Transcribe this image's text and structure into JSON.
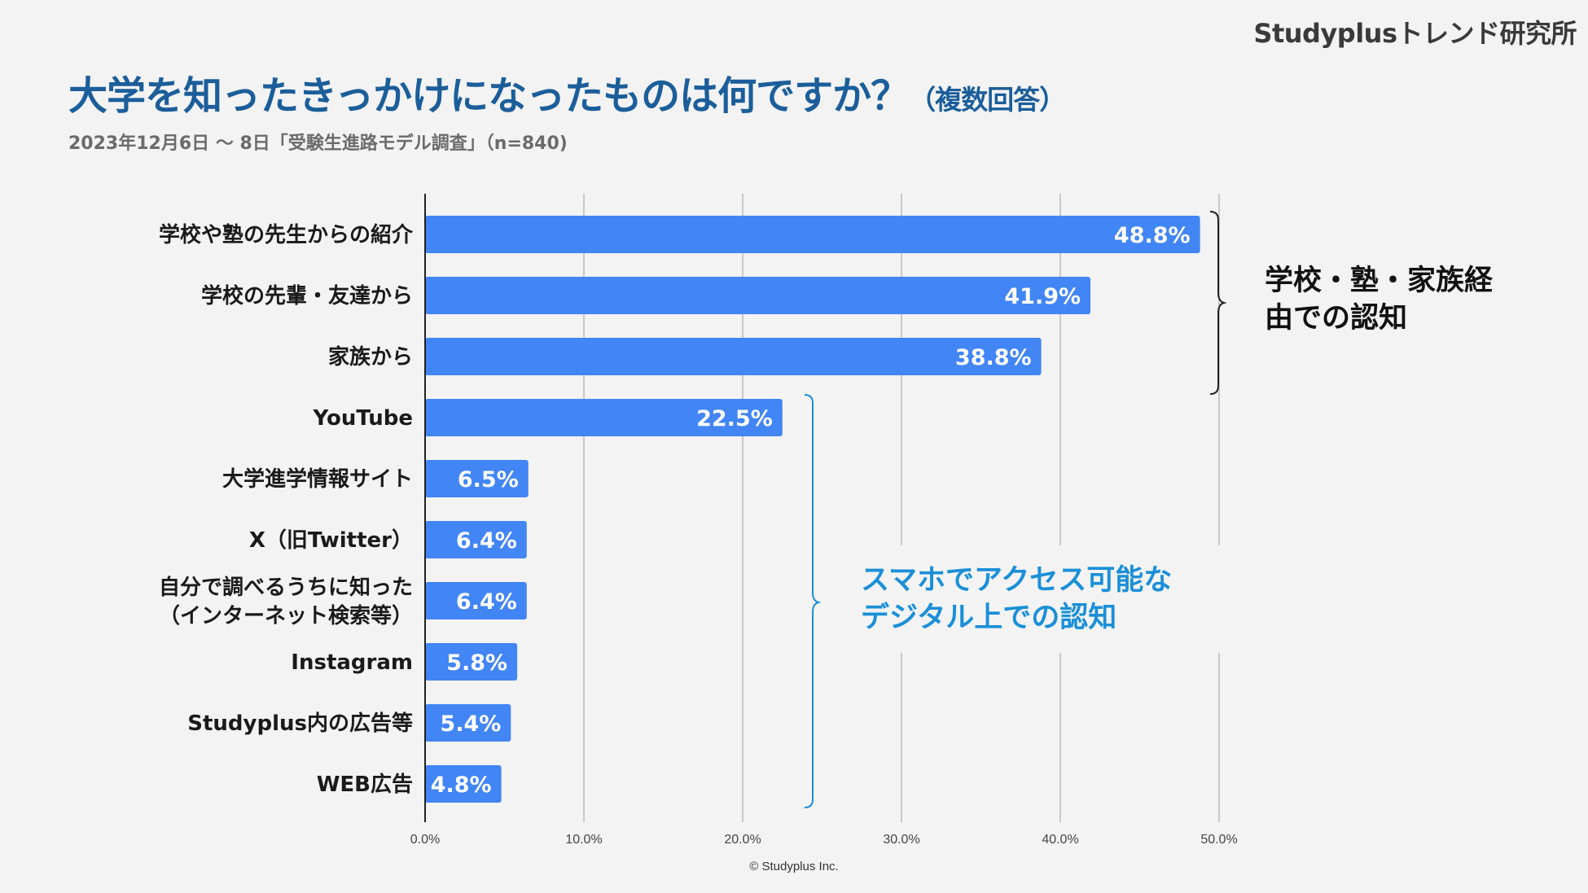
{
  "brand": "Studyplusトレンド研究所",
  "title": {
    "main": "大学を知ったきっかけになったものは何ですか？",
    "paren": "（複数回答）"
  },
  "subtitle": "2023年12月6日 ～ 8日「受験生進路モデル調査」（n=840)",
  "annotations": {
    "family_group": [
      "学校・塾・家族経",
      "由での認知"
    ],
    "digital_group": [
      "スマホでアクセス可能な",
      "デジタル上での認知"
    ]
  },
  "copyright": "© Studyplus Inc.",
  "colors": {
    "bar": "#4285f4",
    "title": "#1b5e9a",
    "blue_annotation": "#1a8fd8",
    "background": "#f3f3f3"
  },
  "chart_data": {
    "type": "bar",
    "orientation": "horizontal",
    "categories": [
      [
        "学校や塾の先生からの紹介"
      ],
      [
        "学校の先輩・友達から"
      ],
      [
        "家族から"
      ],
      [
        "YouTube"
      ],
      [
        "大学進学情報サイト"
      ],
      [
        "X（旧Twitter）"
      ],
      [
        "自分で調べるうちに知った",
        "（インターネット検索等）"
      ],
      [
        "Instagram"
      ],
      [
        "Studyplus内の広告等"
      ],
      [
        "WEB広告"
      ]
    ],
    "values": [
      48.8,
      41.9,
      38.8,
      22.5,
      6.5,
      6.4,
      6.4,
      5.8,
      5.4,
      4.8
    ],
    "value_labels": [
      "48.8%",
      "41.9%",
      "38.8%",
      "22.5%",
      "6.5%",
      "6.4%",
      "6.4%",
      "5.8%",
      "5.4%",
      "4.8%"
    ],
    "xlim": [
      0,
      50
    ],
    "ticks": [
      0,
      10,
      20,
      30,
      40,
      50
    ],
    "tick_labels": [
      "0.0%",
      "10.0%",
      "20.0%",
      "30.0%",
      "40.0%",
      "50.0%"
    ],
    "grid": true,
    "legend": "none"
  }
}
